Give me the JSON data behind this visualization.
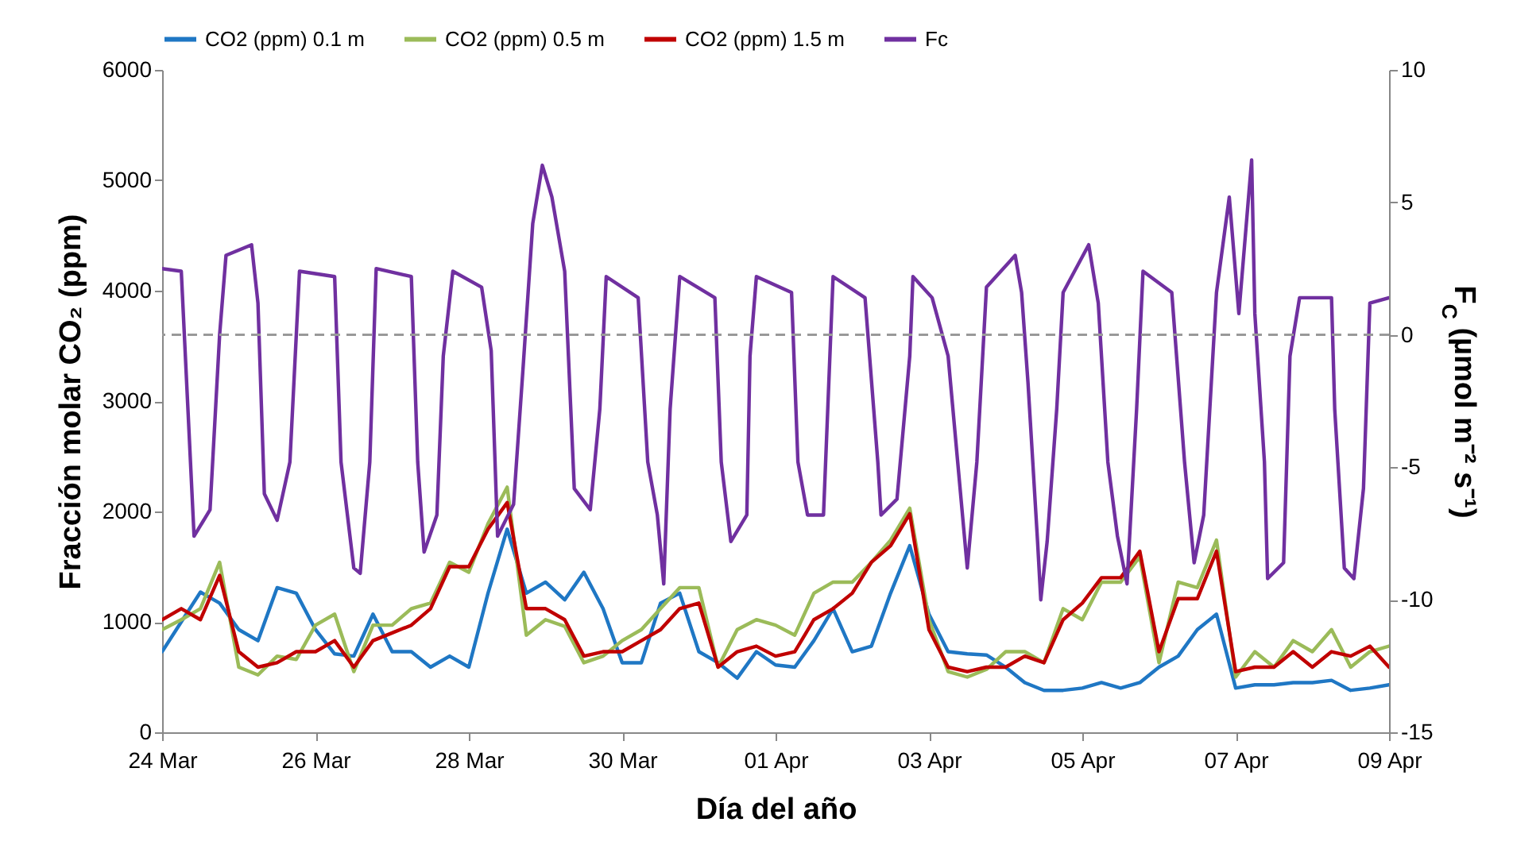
{
  "chart_data": {
    "type": "line",
    "xlabel": "Día del año",
    "ylabel": "Fracción molar CO₂ (ppm)",
    "y2label": "F$_{C}$ (µmol m⁻² s⁻¹)",
    "x": [
      "--03-24T00:00",
      "--03-24T06:00",
      "--03-24T12:00",
      "--03-24T18:00",
      "--03-25T00:00",
      "--03-25T06:00",
      "--03-25T12:00",
      "--03-25T18:00",
      "--03-26T00:00",
      "--03-26T06:00",
      "--03-26T12:00",
      "--03-26T18:00",
      "--03-27T00:00",
      "--03-27T06:00",
      "--03-27T12:00",
      "--03-27T18:00",
      "--03-28T00:00",
      "--03-28T06:00",
      "--03-28T12:00",
      "--03-28T18:00",
      "--03-29T00:00",
      "--03-29T06:00",
      "--03-29T12:00",
      "--03-29T18:00",
      "--03-30T00:00",
      "--03-30T06:00",
      "--03-30T12:00",
      "--03-30T18:00",
      "--03-31T00:00",
      "--03-31T06:00",
      "--03-31T12:00",
      "--03-31T18:00",
      "--04-01T00:00",
      "--04-01T06:00",
      "--04-01T12:00",
      "--04-01T18:00",
      "--04-02T00:00",
      "--04-02T06:00",
      "--04-02T12:00",
      "--04-02T18:00",
      "--04-03T00:00",
      "--04-03T06:00",
      "--04-03T12:00",
      "--04-03T18:00",
      "--04-04T00:00",
      "--04-04T06:00",
      "--04-04T12:00",
      "--04-04T18:00",
      "--04-05T00:00",
      "--04-05T06:00",
      "--04-05T12:00",
      "--04-05T18:00",
      "--04-06T00:00",
      "--04-06T06:00",
      "--04-06T12:00",
      "--04-06T18:00",
      "--04-07T00:00",
      "--04-07T06:00",
      "--04-07T12:00",
      "--04-07T18:00",
      "--04-08T00:00",
      "--04-08T06:00",
      "--04-08T12:00",
      "--04-08T18:00",
      "--04-09T00:00"
    ],
    "series": [
      {
        "name": "CO2 (ppm) 0.1 m",
        "color": "#1f77c4",
        "values": [
          730,
          1000,
          1270,
          1170,
          930,
          830,
          1310,
          1260,
          930,
          710,
          690,
          1070,
          730,
          730,
          590,
          690,
          590,
          1260,
          1840,
          1260,
          1360,
          1200,
          1450,
          1120,
          630,
          630,
          1170,
          1260,
          730,
          630,
          490,
          730,
          610,
          590,
          830,
          1120,
          730,
          780,
          1260,
          1690,
          1070,
          730,
          710,
          700,
          590,
          450,
          380,
          380,
          400,
          450,
          400,
          450,
          590,
          690,
          930,
          1070,
          400,
          430,
          430,
          450,
          450,
          470,
          380,
          400,
          430
        ]
      },
      {
        "name": "CO2 (ppm) 0.5 m",
        "color": "#9bbb59",
        "values": [
          930,
          1020,
          1120,
          1540,
          590,
          520,
          690,
          660,
          970,
          1070,
          550,
          970,
          970,
          1120,
          1170,
          1540,
          1450,
          1890,
          2220,
          880,
          1020,
          960,
          630,
          690,
          830,
          930,
          1120,
          1310,
          1310,
          590,
          930,
          1020,
          970,
          880,
          1260,
          1360,
          1360,
          1540,
          1740,
          2030,
          1020,
          550,
          500,
          570,
          730,
          730,
          630,
          1120,
          1020,
          1360,
          1360,
          1590,
          630,
          1360,
          1310,
          1740,
          500,
          730,
          590,
          830,
          730,
          930,
          590,
          730,
          780
        ]
      },
      {
        "name": "CO2 (ppm) 1.5 m",
        "color": "#c00000",
        "values": [
          1020,
          1120,
          1020,
          1420,
          730,
          590,
          630,
          730,
          730,
          830,
          590,
          830,
          900,
          970,
          1120,
          1500,
          1500,
          1840,
          2080,
          1120,
          1120,
          1020,
          690,
          730,
          730,
          830,
          930,
          1120,
          1170,
          590,
          730,
          780,
          690,
          730,
          1020,
          1120,
          1260,
          1540,
          1690,
          1980,
          930,
          590,
          550,
          590,
          590,
          690,
          630,
          1020,
          1170,
          1400,
          1400,
          1640,
          730,
          1210,
          1210,
          1640,
          550,
          590,
          590,
          730,
          590,
          730,
          690,
          780,
          590
        ]
      },
      {
        "name": "Fc",
        "color": "#7030a0",
        "axis": "y2",
        "x": [
          "--03-24T00:00",
          "--03-24T06:00",
          "--03-24T10:00",
          "--03-24T15:00",
          "--03-24T18:00",
          "--03-24T20:00",
          "--03-25T04:00",
          "--03-25T06:00",
          "--03-25T08:00",
          "--03-25T12:00",
          "--03-25T16:00",
          "--03-25T19:00",
          "--03-26T06:00",
          "--03-26T08:00",
          "--03-26T12:00",
          "--03-26T14:00",
          "--03-26T17:00",
          "--03-26T19:00",
          "--03-27T06:00",
          "--03-27T08:00",
          "--03-27T10:00",
          "--03-27T14:00",
          "--03-27T16:00",
          "--03-27T19:00",
          "--03-28T04:00",
          "--03-28T07:00",
          "--03-28T09:00",
          "--03-28T14:00",
          "--03-28T17:00",
          "--03-28T20:00",
          "--03-28T23:00",
          "--03-29T02:00",
          "--03-29T06:00",
          "--03-29T09:00",
          "--03-29T14:00",
          "--03-29T17:00",
          "--03-29T19:00",
          "--03-30T05:00",
          "--03-30T08:00",
          "--03-30T11:00",
          "--03-30T13:00",
          "--03-30T15:00",
          "--03-30T18:00",
          "--03-31T05:00",
          "--03-31T07:00",
          "--03-31T10:00",
          "--03-31T15:00",
          "--03-31T16:00",
          "--03-31T18:00",
          "--04-01T05:00",
          "--04-01T07:00",
          "--04-01T10:00",
          "--04-01T15:00",
          "--04-01T18:00",
          "--04-02T04:00",
          "--04-02T08:00",
          "--04-02T09:00",
          "--04-02T14:00",
          "--04-02T18:00",
          "--04-02T19:00",
          "--04-03T01:00",
          "--04-03T06:00",
          "--04-03T09:00",
          "--04-03T12:00",
          "--04-03T15:00",
          "--04-03T18:00",
          "--04-04T03:00",
          "--04-04T05:00",
          "--04-04T07:00",
          "--04-04T10:00",
          "--04-04T11:00",
          "--04-04T13:00",
          "--04-04T16:00",
          "--04-04T18:00",
          "--04-05T02:00",
          "--04-05T05:00",
          "--04-05T08:00",
          "--04-05T11:00",
          "--04-05T14:00",
          "--04-05T17:00",
          "--04-05T19:00",
          "--04-06T04:00",
          "--04-06T08:00",
          "--04-06T11:00",
          "--04-06T14:00",
          "--04-06T18:00",
          "--04-06T22:00",
          "--04-07T01:00",
          "--04-07T05:00",
          "--04-07T06:00",
          "--04-07T09:00",
          "--04-07T10:00",
          "--04-07T15:00",
          "--04-07T17:00",
          "--04-07T20:00",
          "--04-08T06:00",
          "--04-08T07:00",
          "--04-08T10:00",
          "--04-08T13:00",
          "--04-08T16:00",
          "--04-08T18:00",
          "--04-09T00:00"
        ],
        "values": [
          2.5,
          2.4,
          -7.6,
          -6.6,
          0,
          3,
          3.4,
          1.2,
          -6,
          -7,
          -4.8,
          2.4,
          2.2,
          -4.8,
          -8.8,
          -9,
          -4.8,
          2.5,
          2.2,
          -4.8,
          -8.2,
          -6.8,
          -0.8,
          2.4,
          1.8,
          -0.6,
          -7.6,
          -6.4,
          -1.2,
          4.2,
          6.4,
          5.2,
          2.4,
          -5.8,
          -6.6,
          -2.8,
          2.2,
          1.4,
          -4.8,
          -6.8,
          -9.4,
          -2.8,
          2.2,
          1.4,
          -4.8,
          -7.8,
          -6.8,
          -0.8,
          2.2,
          1.6,
          -4.8,
          -6.8,
          -6.8,
          2.2,
          1.4,
          -4.8,
          -6.8,
          -6.2,
          -0.8,
          2.2,
          1.4,
          -0.8,
          -4.8,
          -8.8,
          -4.8,
          1.8,
          3,
          1.6,
          -1.8,
          -7.8,
          -10,
          -7.8,
          -2.8,
          1.6,
          3.4,
          1.2,
          -4.8,
          -7.6,
          -9.4,
          -2.8,
          2.4,
          1.6,
          -4.8,
          -8.6,
          -6.8,
          1.6,
          5.2,
          0.8,
          6.6,
          0.8,
          -4.8,
          -9.2,
          -8.6,
          -0.8,
          1.4,
          1.4,
          -2.8,
          -8.8,
          -9.2,
          -5.8,
          1.2,
          1.4
        ]
      }
    ],
    "xlim": [
      "--03-24",
      "--04-09"
    ],
    "xticks": [
      {
        "value": "--03-24",
        "label": "24 Mar"
      },
      {
        "value": "--03-26",
        "label": "26 Mar"
      },
      {
        "value": "--03-28",
        "label": "28 Mar"
      },
      {
        "value": "--03-30",
        "label": "30 Mar"
      },
      {
        "value": "--04-01",
        "label": "01 Apr"
      },
      {
        "value": "--04-03",
        "label": "03 Apr"
      },
      {
        "value": "--04-05",
        "label": "05 Apr"
      },
      {
        "value": "--04-07",
        "label": "07 Apr"
      },
      {
        "value": "--04-09",
        "label": "09 Apr"
      }
    ],
    "ylim": [
      0,
      6000
    ],
    "yticks": [
      0,
      1000,
      2000,
      3000,
      4000,
      5000,
      6000
    ],
    "y2lim": [
      -15,
      10
    ],
    "y2ticks": [
      -15,
      -10,
      -5,
      0,
      5,
      10
    ],
    "ref_lines": [
      {
        "axis": "y2",
        "value": 0,
        "color": "#999999",
        "line_style": "dashed"
      }
    ],
    "legend": "top",
    "grid": false,
    "line_style": "solid"
  }
}
